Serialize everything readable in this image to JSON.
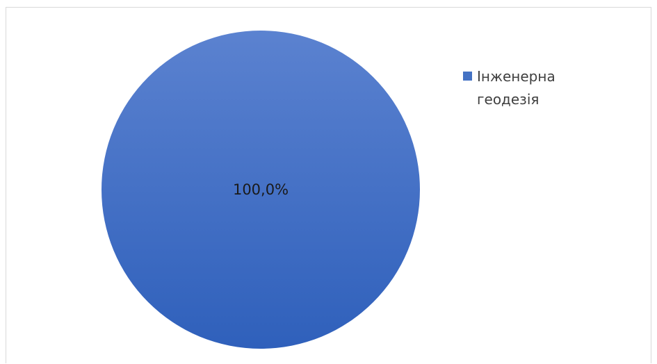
{
  "chart_data": {
    "type": "pie",
    "categories": [
      "Інженерна геодезія"
    ],
    "values": [
      100.0
    ],
    "data_labels": [
      "100,0%"
    ],
    "legend": {
      "placement": "right",
      "entries": [
        "Інженерна геодезія"
      ]
    },
    "colors": [
      "#4472c4"
    ]
  }
}
